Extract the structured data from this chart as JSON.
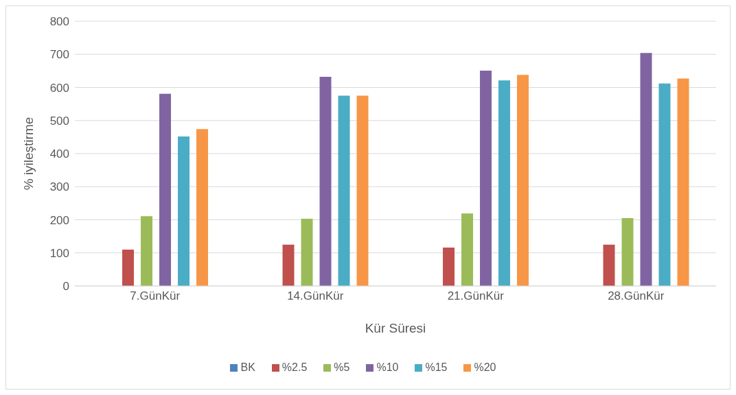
{
  "chart_data": {
    "type": "bar",
    "xlabel": "Kür Süresi",
    "ylabel": "% iyileştirme",
    "categories": [
      "7.GünKür",
      "14.GünKür",
      "21.GünKür",
      "28.GünKür"
    ],
    "series": [
      {
        "name": "BK",
        "color": "#4f81bd",
        "values": [
          0,
          0,
          0,
          0
        ]
      },
      {
        "name": "%2.5",
        "color": "#c0504d",
        "values": [
          110,
          125,
          116,
          125
        ]
      },
      {
        "name": "%5",
        "color": "#9bbb59",
        "values": [
          211,
          203,
          219,
          205
        ]
      },
      {
        "name": "%10",
        "color": "#8064a2",
        "values": [
          581,
          632,
          651,
          704
        ]
      },
      {
        "name": "%15",
        "color": "#4bacc6",
        "values": [
          452,
          575,
          621,
          612
        ]
      },
      {
        "name": "%20",
        "color": "#f79646",
        "values": [
          474,
          575,
          638,
          627
        ]
      }
    ],
    "ylim": [
      0,
      800
    ],
    "yticks": [
      0,
      100,
      200,
      300,
      400,
      500,
      600,
      700,
      800
    ],
    "grid": "y",
    "legend": "bottom"
  }
}
